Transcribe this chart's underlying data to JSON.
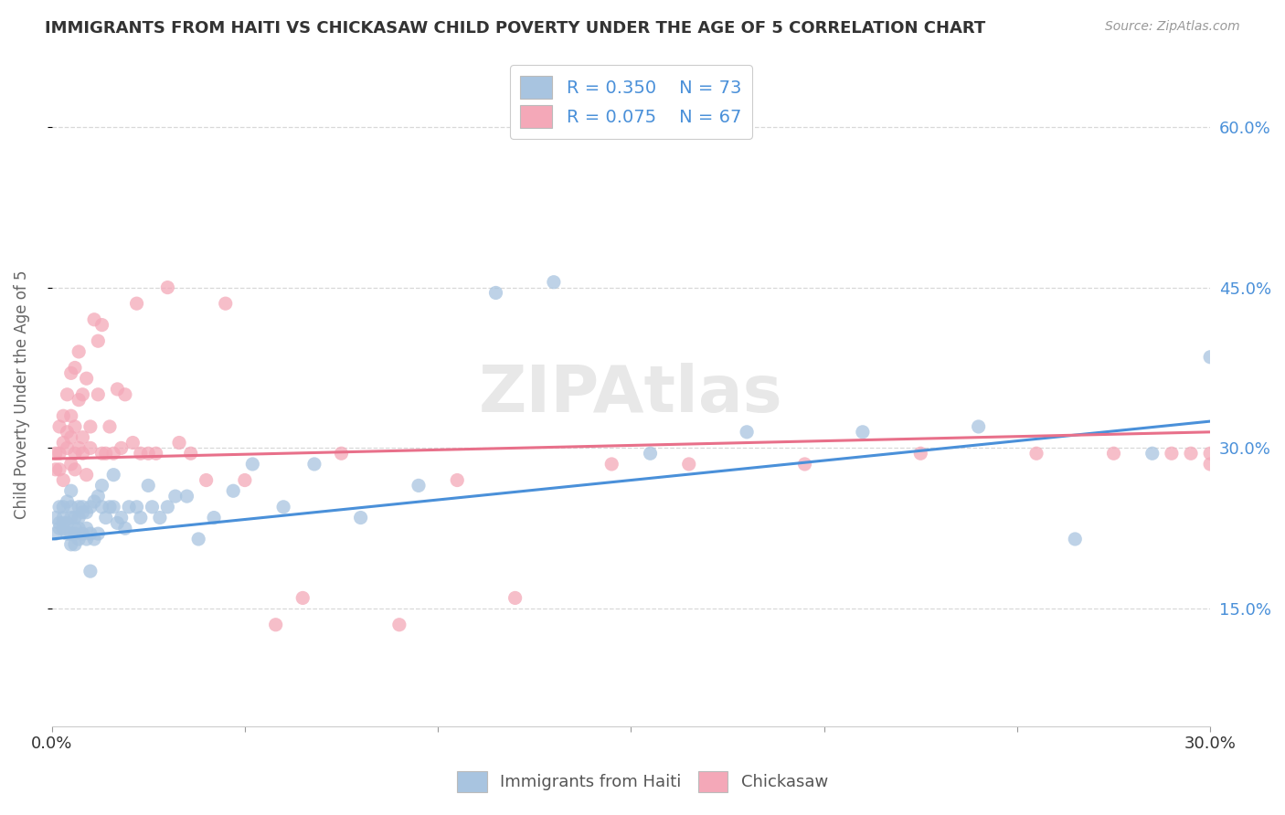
{
  "title": "IMMIGRANTS FROM HAITI VS CHICKASAW CHILD POVERTY UNDER THE AGE OF 5 CORRELATION CHART",
  "source": "Source: ZipAtlas.com",
  "ylabel": "Child Poverty Under the Age of 5",
  "yticks": [
    "15.0%",
    "30.0%",
    "45.0%",
    "60.0%"
  ],
  "ytick_vals": [
    0.15,
    0.3,
    0.45,
    0.6
  ],
  "xmin": 0.0,
  "xmax": 0.3,
  "ymin": 0.04,
  "ymax": 0.66,
  "haiti_color": "#a8c4e0",
  "chickasaw_color": "#f4a8b8",
  "haiti_line_color": "#4a90d9",
  "chickasaw_line_color": "#e8708a",
  "R_haiti": 0.35,
  "N_haiti": 73,
  "R_chickasaw": 0.075,
  "N_chickasaw": 67,
  "legend_label_haiti": "Immigrants from Haiti",
  "legend_label_chickasaw": "Chickasaw",
  "haiti_line_y0": 0.215,
  "haiti_line_y1": 0.325,
  "chickasaw_line_y0": 0.29,
  "chickasaw_line_y1": 0.315,
  "haiti_scatter_x": [
    0.001,
    0.001,
    0.002,
    0.002,
    0.002,
    0.003,
    0.003,
    0.003,
    0.003,
    0.004,
    0.004,
    0.004,
    0.005,
    0.005,
    0.005,
    0.005,
    0.005,
    0.006,
    0.006,
    0.006,
    0.006,
    0.007,
    0.007,
    0.007,
    0.007,
    0.008,
    0.008,
    0.008,
    0.009,
    0.009,
    0.009,
    0.01,
    0.01,
    0.01,
    0.011,
    0.011,
    0.012,
    0.012,
    0.013,
    0.013,
    0.014,
    0.015,
    0.016,
    0.016,
    0.017,
    0.018,
    0.019,
    0.02,
    0.022,
    0.023,
    0.025,
    0.026,
    0.028,
    0.03,
    0.032,
    0.035,
    0.038,
    0.042,
    0.047,
    0.052,
    0.06,
    0.068,
    0.08,
    0.095,
    0.115,
    0.13,
    0.155,
    0.18,
    0.21,
    0.24,
    0.265,
    0.285,
    0.3
  ],
  "haiti_scatter_y": [
    0.235,
    0.22,
    0.225,
    0.245,
    0.23,
    0.23,
    0.235,
    0.245,
    0.225,
    0.22,
    0.23,
    0.25,
    0.21,
    0.22,
    0.235,
    0.245,
    0.26,
    0.21,
    0.225,
    0.235,
    0.22,
    0.225,
    0.215,
    0.245,
    0.235,
    0.22,
    0.24,
    0.245,
    0.215,
    0.225,
    0.24,
    0.185,
    0.22,
    0.245,
    0.215,
    0.25,
    0.22,
    0.255,
    0.245,
    0.265,
    0.235,
    0.245,
    0.245,
    0.275,
    0.23,
    0.235,
    0.225,
    0.245,
    0.245,
    0.235,
    0.265,
    0.245,
    0.235,
    0.245,
    0.255,
    0.255,
    0.215,
    0.235,
    0.26,
    0.285,
    0.245,
    0.285,
    0.235,
    0.265,
    0.445,
    0.455,
    0.295,
    0.315,
    0.315,
    0.32,
    0.215,
    0.295,
    0.385
  ],
  "chickasaw_scatter_x": [
    0.001,
    0.001,
    0.002,
    0.002,
    0.002,
    0.003,
    0.003,
    0.003,
    0.004,
    0.004,
    0.004,
    0.005,
    0.005,
    0.005,
    0.005,
    0.006,
    0.006,
    0.006,
    0.006,
    0.007,
    0.007,
    0.007,
    0.008,
    0.008,
    0.008,
    0.009,
    0.009,
    0.01,
    0.01,
    0.011,
    0.012,
    0.012,
    0.013,
    0.013,
    0.014,
    0.015,
    0.016,
    0.017,
    0.018,
    0.019,
    0.021,
    0.022,
    0.023,
    0.025,
    0.027,
    0.03,
    0.033,
    0.036,
    0.04,
    0.045,
    0.05,
    0.058,
    0.065,
    0.075,
    0.09,
    0.105,
    0.12,
    0.145,
    0.165,
    0.195,
    0.225,
    0.255,
    0.275,
    0.29,
    0.295,
    0.3,
    0.3
  ],
  "chickasaw_scatter_y": [
    0.295,
    0.28,
    0.28,
    0.295,
    0.32,
    0.27,
    0.33,
    0.305,
    0.3,
    0.315,
    0.35,
    0.285,
    0.31,
    0.33,
    0.37,
    0.295,
    0.32,
    0.375,
    0.28,
    0.3,
    0.345,
    0.39,
    0.295,
    0.35,
    0.31,
    0.275,
    0.365,
    0.3,
    0.32,
    0.42,
    0.35,
    0.4,
    0.295,
    0.415,
    0.295,
    0.32,
    0.295,
    0.355,
    0.3,
    0.35,
    0.305,
    0.435,
    0.295,
    0.295,
    0.295,
    0.45,
    0.305,
    0.295,
    0.27,
    0.435,
    0.27,
    0.135,
    0.16,
    0.295,
    0.135,
    0.27,
    0.16,
    0.285,
    0.285,
    0.285,
    0.295,
    0.295,
    0.295,
    0.295,
    0.295,
    0.285,
    0.295
  ],
  "watermark": "ZIPAtlas",
  "background_color": "#ffffff",
  "grid_color": "#d8d8d8"
}
